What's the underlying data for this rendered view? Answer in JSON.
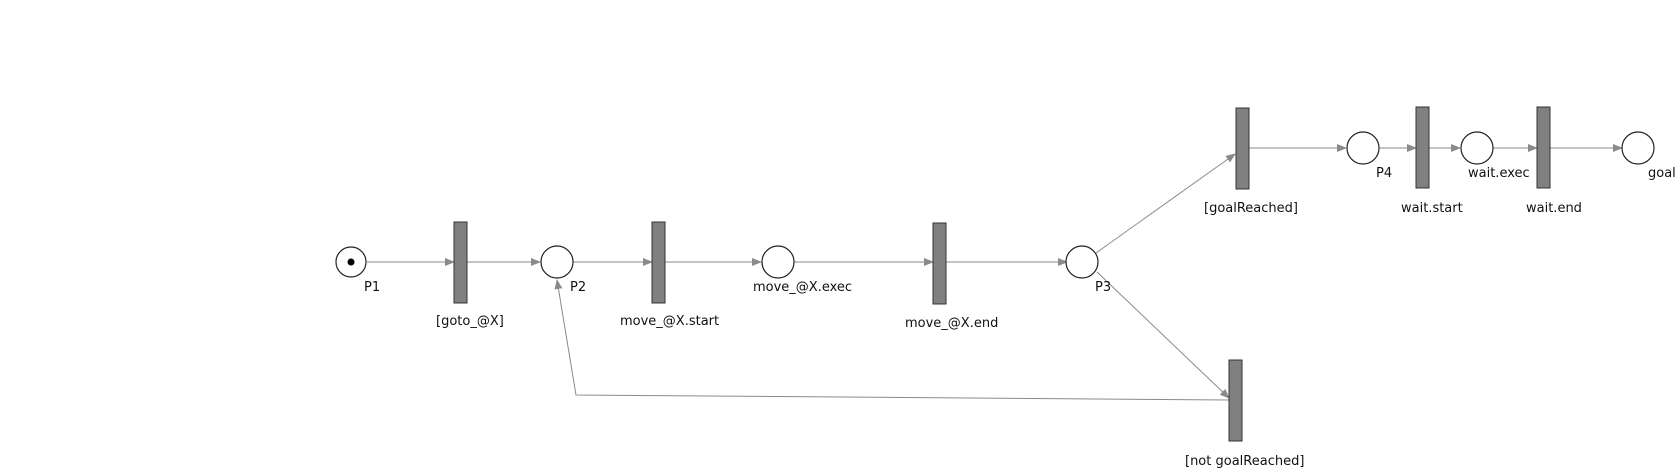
{
  "colors": {
    "place_stroke": "#222222",
    "transition_fill": "#808080",
    "arc": "#8a8a8a",
    "background": "#ffffff"
  },
  "places": {
    "p1": {
      "label": "P1",
      "tokens": 1
    },
    "p2": {
      "label": "P2",
      "tokens": 0
    },
    "p_exec": {
      "label": "move_@X.exec",
      "tokens": 0
    },
    "p3": {
      "label": "P3",
      "tokens": 0
    },
    "p4": {
      "label": "P4",
      "tokens": 0
    },
    "p_wait": {
      "label": "wait.exec",
      "tokens": 0
    },
    "p_goal": {
      "label": "goal",
      "tokens": 0
    }
  },
  "transitions": {
    "t_goto": {
      "label": "[goto_@X]"
    },
    "t_start": {
      "label": "move_@X.start"
    },
    "t_end": {
      "label": "move_@X.end"
    },
    "t_goal": {
      "label": "[goalReached]"
    },
    "t_notgoal": {
      "label": "[not goalReached]"
    },
    "t_wstart": {
      "label": "wait.start"
    },
    "t_wend": {
      "label": "wait.end"
    }
  }
}
